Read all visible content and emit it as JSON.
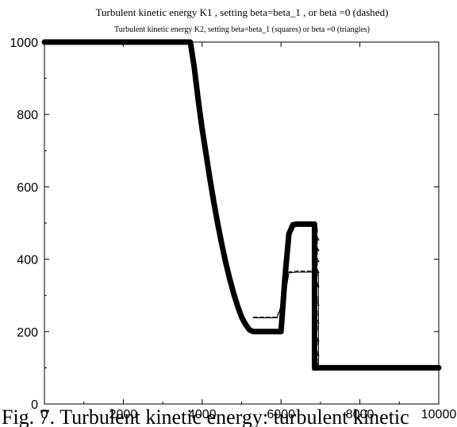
{
  "chart_data": {
    "type": "line",
    "title": "Turbulent kinetic energy K1 , setting beta=beta_1 , or beta =0 (dashed)",
    "subtitle": "Turbulent kinetic energy K2, setting beta=beta_1 (squares) or beta =0 (triangles)",
    "xlim": [
      0,
      10000
    ],
    "ylim": [
      0,
      1000
    ],
    "x_ticks": [
      "0",
      "2000",
      "4000",
      "6000",
      "8000",
      "10000"
    ],
    "y_ticks": [
      "0",
      "200",
      "400",
      "600",
      "800",
      "1000"
    ],
    "grid": false,
    "series": [
      {
        "style": "thick solid",
        "x": [
          0,
          3700,
          3800,
          3900,
          4000,
          4100,
          4200,
          4300,
          4400,
          4500,
          4600,
          4700,
          4800,
          4900,
          5000,
          5100,
          5200,
          5300,
          5400,
          5500,
          5600,
          5700,
          5800,
          5900,
          6000,
          6100,
          6200,
          6300,
          6400,
          6500,
          6600,
          6700,
          6850,
          6851,
          6900,
          7500,
          8000,
          9000,
          10000
        ],
        "y": [
          1000,
          1000,
          930,
          840,
          760,
          690,
          620,
          555,
          495,
          440,
          390,
          345,
          305,
          270,
          240,
          220,
          205,
          200,
          200,
          200,
          200,
          200,
          200,
          200,
          200,
          350,
          470,
          495,
          497,
          497,
          497,
          497,
          497,
          100,
          100,
          100,
          100,
          100,
          100
        ]
      },
      {
        "style": "dashed",
        "x": [
          5300,
          5500,
          5700,
          5900,
          6100,
          6200,
          6400,
          6600,
          6800,
          6850,
          6851,
          6900
        ],
        "y": [
          240,
          240,
          240,
          240,
          300,
          365,
          367,
          367,
          367,
          367,
          100,
          100
        ]
      },
      {
        "style": "thin solid",
        "x": [
          5300,
          5500,
          5700,
          5900,
          6100,
          6200,
          6400,
          6600,
          6800,
          6950,
          6951,
          7000
        ],
        "y": [
          238,
          238,
          238,
          238,
          300,
          362,
          364,
          364,
          364,
          364,
          100,
          100
        ]
      },
      {
        "style": "squares",
        "x": [
          6860,
          6860,
          6860,
          6860,
          6860,
          6860,
          6860,
          6860,
          6860,
          6860,
          6860,
          6860,
          6860
        ],
        "y": [
          480,
          450,
          420,
          390,
          360,
          330,
          290,
          250,
          210,
          170,
          140,
          120,
          100
        ]
      },
      {
        "style": "triangles",
        "x": [
          6890,
          6890,
          6890,
          6890,
          6890,
          6890,
          6890,
          6890,
          6890,
          6890
        ],
        "y": [
          460,
          430,
          400,
          370,
          330,
          280,
          230,
          180,
          140,
          110
        ]
      }
    ]
  },
  "caption": "Fig. 7. Turbulent kinetic energy: turbulent kinetic"
}
